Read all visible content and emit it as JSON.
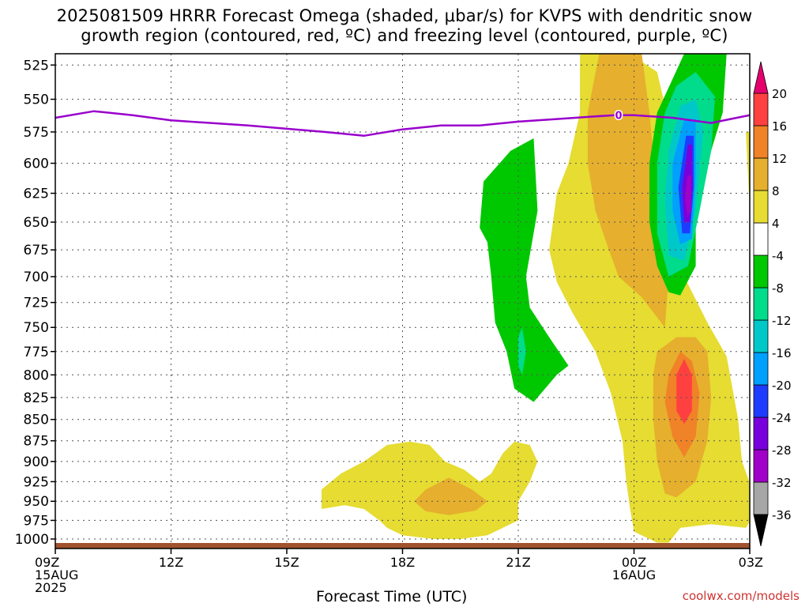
{
  "title": {
    "line1": "2025081509 HRRR Forecast Omega (shaded, μbar/s) for KVPS with dendritic snow",
    "line2": "growth region (contoured, red, ºC) and freezing level (contoured, purple, ºC)"
  },
  "credit": "coolwx.com/models",
  "chart_data": {
    "type": "heatmap",
    "title": "2025081509 HRRR Forecast Omega (shaded, μbar/s) for KVPS with dendritic snow growth region (contoured, red, ºC) and freezing level (contoured, purple, ºC)",
    "xlabel": "Forecast Time (UTC)",
    "ylabel": "",
    "x_ticks": [
      {
        "hour": 0,
        "lines": [
          "09Z",
          "15AUG",
          "2025"
        ]
      },
      {
        "hour": 3,
        "lines": [
          "12Z"
        ]
      },
      {
        "hour": 6,
        "lines": [
          "15Z"
        ]
      },
      {
        "hour": 9,
        "lines": [
          "18Z"
        ]
      },
      {
        "hour": 12,
        "lines": [
          "21Z"
        ]
      },
      {
        "hour": 15,
        "lines": [
          "00Z",
          "16AUG"
        ]
      },
      {
        "hour": 18,
        "lines": [
          "03Z"
        ]
      }
    ],
    "xlim": [
      "2025-08-15 09Z",
      "2025-08-16 03Z"
    ],
    "y_ticks": [
      525,
      550,
      575,
      600,
      625,
      650,
      675,
      700,
      725,
      750,
      775,
      800,
      825,
      850,
      875,
      900,
      925,
      950,
      975,
      1000
    ],
    "ylim": [
      1013,
      517
    ],
    "y_scale": "log-pressure",
    "grid": true,
    "colorbar": {
      "levels": [
        "-36",
        "-32",
        "-28",
        "-24",
        "-20",
        "-16",
        "-12",
        "-8",
        "-4",
        "4",
        "8",
        "12",
        "16",
        "20"
      ],
      "colors": [
        "#000000",
        "#a6a6a6",
        "#a000c8",
        "#7800dc",
        "#1e3cff",
        "#00a0ff",
        "#00c8c8",
        "#00dc8c",
        "#00c800",
        "#ffffff",
        "#e6dc32",
        "#e6af2d",
        "#f08228",
        "#ff4040",
        "#e6006e"
      ]
    },
    "freezing_level": {
      "label": "0",
      "color": "#9900cc",
      "points": [
        [
          0,
          564
        ],
        [
          1,
          559
        ],
        [
          2,
          562
        ],
        [
          3,
          566
        ],
        [
          5,
          570
        ],
        [
          7,
          575
        ],
        [
          8,
          578
        ],
        [
          9,
          573
        ],
        [
          10,
          570
        ],
        [
          11,
          570
        ],
        [
          12,
          567
        ],
        [
          13,
          565
        ],
        [
          14,
          563
        ],
        [
          14.5,
          562
        ],
        [
          15,
          562
        ],
        [
          16,
          564
        ],
        [
          17,
          568
        ],
        [
          17.5,
          565
        ],
        [
          18,
          562
        ]
      ]
    },
    "regions": [
      {
        "name": "up-4",
        "value": 4,
        "points": [
          [
            9.8,
            1000
          ],
          [
            9.0,
            995
          ],
          [
            8.6,
            985
          ],
          [
            8.4,
            975
          ],
          [
            8.0,
            960
          ],
          [
            7.5,
            955
          ],
          [
            6.9,
            960
          ],
          [
            6.9,
            935
          ],
          [
            7.4,
            915
          ],
          [
            8.0,
            900
          ],
          [
            8.6,
            880
          ],
          [
            9.2,
            876
          ],
          [
            9.7,
            880
          ],
          [
            10.1,
            900
          ],
          [
            10.6,
            910
          ],
          [
            11.0,
            925
          ],
          [
            11.3,
            915
          ],
          [
            11.6,
            890
          ],
          [
            11.9,
            876
          ],
          [
            12.3,
            880
          ],
          [
            12.5,
            900
          ],
          [
            12.3,
            925
          ],
          [
            12.0,
            950
          ],
          [
            12.0,
            975
          ],
          [
            11.2,
            995
          ],
          [
            10.5,
            1000
          ]
        ]
      },
      {
        "name": "up-8",
        "value": 8,
        "points": [
          [
            9.3,
            950
          ],
          [
            9.6,
            935
          ],
          [
            10.2,
            920
          ],
          [
            10.8,
            935
          ],
          [
            11.2,
            950
          ],
          [
            10.9,
            962
          ],
          [
            10.2,
            968
          ],
          [
            9.6,
            963
          ]
        ]
      },
      {
        "name": "up-4",
        "value": 4,
        "points": [
          [
            13.6,
            517
          ],
          [
            14.9,
            517
          ],
          [
            15.6,
            530
          ],
          [
            16.0,
            580
          ],
          [
            16.1,
            650
          ],
          [
            16.3,
            700
          ],
          [
            16.9,
            745
          ],
          [
            17.4,
            780
          ],
          [
            17.7,
            850
          ],
          [
            17.8,
            900
          ],
          [
            18.1,
            940
          ],
          [
            18.2,
            960
          ],
          [
            17.9,
            985
          ],
          [
            17.0,
            980
          ],
          [
            16.2,
            985
          ],
          [
            15.9,
            1005
          ],
          [
            15.6,
            1005
          ],
          [
            15.0,
            990
          ],
          [
            14.9,
            960
          ],
          [
            14.8,
            925
          ],
          [
            14.7,
            875
          ],
          [
            14.4,
            820
          ],
          [
            14.0,
            775
          ],
          [
            13.4,
            735
          ],
          [
            13.0,
            705
          ],
          [
            12.8,
            675
          ],
          [
            13.0,
            625
          ],
          [
            13.3,
            600
          ],
          [
            13.6,
            560
          ]
        ]
      },
      {
        "name": "up-8",
        "value": 8,
        "points": [
          [
            14.1,
            517
          ],
          [
            15.2,
            517
          ],
          [
            15.4,
            560
          ],
          [
            15.6,
            625
          ],
          [
            15.9,
            700
          ],
          [
            15.8,
            750
          ],
          [
            15.2,
            720
          ],
          [
            14.6,
            700
          ],
          [
            14.3,
            670
          ],
          [
            14.0,
            640
          ],
          [
            13.8,
            600
          ],
          [
            13.8,
            560
          ]
        ]
      },
      {
        "name": "up-8",
        "value": 8,
        "points": [
          [
            15.6,
            775
          ],
          [
            16.1,
            760
          ],
          [
            16.6,
            760
          ],
          [
            16.9,
            775
          ],
          [
            17.0,
            825
          ],
          [
            16.9,
            875
          ],
          [
            16.6,
            925
          ],
          [
            16.1,
            945
          ],
          [
            15.8,
            940
          ],
          [
            15.6,
            900
          ],
          [
            15.5,
            850
          ],
          [
            15.5,
            800
          ]
        ]
      },
      {
        "name": "up-12",
        "value": 12,
        "points": [
          [
            15.9,
            800
          ],
          [
            16.2,
            775
          ],
          [
            16.5,
            785
          ],
          [
            16.7,
            820
          ],
          [
            16.6,
            870
          ],
          [
            16.3,
            895
          ],
          [
            16.0,
            870
          ],
          [
            15.8,
            830
          ]
        ]
      },
      {
        "name": "up-16",
        "value": 16,
        "points": [
          [
            16.1,
            800
          ],
          [
            16.3,
            783
          ],
          [
            16.5,
            800
          ],
          [
            16.5,
            840
          ],
          [
            16.3,
            855
          ],
          [
            16.1,
            840
          ]
        ]
      },
      {
        "name": "up-4",
        "value": 4,
        "points": [
          [
            17.9,
            575
          ],
          [
            18.0,
            640
          ],
          [
            18.1,
            650
          ],
          [
            18.1,
            575
          ]
        ]
      },
      {
        "name": "dn-4",
        "value": -4,
        "points": [
          [
            11.0,
            655
          ],
          [
            11.1,
            615
          ],
          [
            11.8,
            590
          ],
          [
            12.4,
            580
          ],
          [
            12.5,
            640
          ],
          [
            12.2,
            700
          ],
          [
            12.3,
            730
          ],
          [
            12.8,
            760
          ],
          [
            13.3,
            790
          ],
          [
            13.0,
            800
          ],
          [
            12.4,
            830
          ],
          [
            11.9,
            815
          ],
          [
            11.7,
            775
          ],
          [
            11.4,
            745
          ],
          [
            11.3,
            700
          ],
          [
            11.2,
            668
          ]
        ]
      },
      {
        "name": "dn-8",
        "value": -8,
        "points": [
          [
            12.0,
            760
          ],
          [
            12.1,
            750
          ],
          [
            12.2,
            775
          ],
          [
            12.1,
            800
          ],
          [
            12.0,
            790
          ]
        ]
      },
      {
        "name": "dn-4",
        "value": -4,
        "points": [
          [
            16.3,
            517
          ],
          [
            17.4,
            517
          ],
          [
            17.3,
            560
          ],
          [
            16.9,
            600
          ],
          [
            16.6,
            650
          ],
          [
            16.6,
            690
          ],
          [
            16.2,
            718
          ],
          [
            15.9,
            715
          ],
          [
            15.6,
            690
          ],
          [
            15.4,
            650
          ],
          [
            15.4,
            600
          ],
          [
            15.6,
            560
          ]
        ]
      },
      {
        "name": "dn-8",
        "value": -8,
        "points": [
          [
            16.1,
            540
          ],
          [
            16.6,
            530
          ],
          [
            17.1,
            548
          ],
          [
            17.0,
            590
          ],
          [
            16.7,
            640
          ],
          [
            16.4,
            690
          ],
          [
            15.9,
            700
          ],
          [
            15.6,
            660
          ],
          [
            15.6,
            600
          ],
          [
            15.8,
            560
          ]
        ]
      },
      {
        "name": "dn-12",
        "value": -12,
        "points": [
          [
            16.2,
            555
          ],
          [
            16.6,
            550
          ],
          [
            16.8,
            575
          ],
          [
            16.6,
            640
          ],
          [
            16.3,
            685
          ],
          [
            15.9,
            680
          ],
          [
            15.8,
            630
          ],
          [
            15.9,
            590
          ]
        ]
      },
      {
        "name": "dn-16",
        "value": -16,
        "points": [
          [
            16.3,
            565
          ],
          [
            16.6,
            565
          ],
          [
            16.6,
            610
          ],
          [
            16.5,
            665
          ],
          [
            16.2,
            670
          ],
          [
            16.0,
            640
          ],
          [
            16.0,
            600
          ]
        ]
      },
      {
        "name": "dn-20",
        "value": -20,
        "points": [
          [
            16.35,
            578
          ],
          [
            16.55,
            578
          ],
          [
            16.55,
            620
          ],
          [
            16.45,
            660
          ],
          [
            16.25,
            660
          ],
          [
            16.15,
            620
          ]
        ]
      },
      {
        "name": "dn-24",
        "value": -24,
        "points": [
          [
            16.4,
            585
          ],
          [
            16.5,
            585
          ],
          [
            16.52,
            620
          ],
          [
            16.45,
            650
          ],
          [
            16.3,
            650
          ],
          [
            16.25,
            620
          ]
        ]
      },
      {
        "name": "dn-28",
        "value": -28,
        "points": [
          [
            16.38,
            610
          ],
          [
            16.48,
            610
          ],
          [
            16.48,
            640
          ],
          [
            16.38,
            645
          ],
          [
            16.32,
            630
          ]
        ]
      }
    ]
  }
}
